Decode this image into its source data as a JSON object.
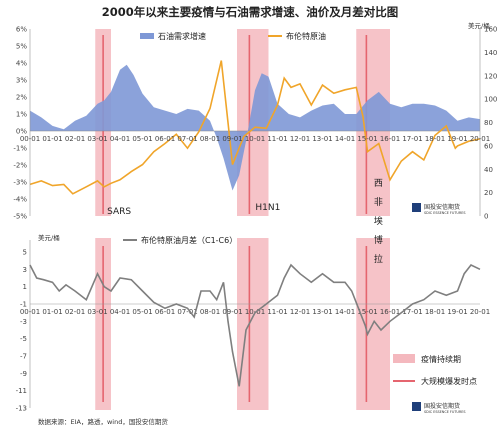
{
  "title": "2000年以来主要疫情与石油需求增速、油价及月差对比图",
  "colors": {
    "demand": "#7e98d6",
    "brent": "#f0a52a",
    "spread": "#7f7f7f",
    "band": "#f4b8be",
    "peak_line": "#e5656f"
  },
  "top_chart": {
    "right_unit": "美元/桶",
    "legend_demand": "石油需求增速",
    "legend_brent": "布伦特原油"
  },
  "bottom_chart": {
    "left_unit": "美元/桶",
    "legend_spread": "布伦特原油月差（C1-C6）",
    "legend_band": "疫情持续期",
    "legend_peak": "大规模爆发时点"
  },
  "events": [
    {
      "label": "SARS",
      "chars": [
        "SARS"
      ]
    },
    {
      "label": "H1N1",
      "chars": [
        "H1N1"
      ]
    },
    {
      "label": "西非埃博拉",
      "chars": [
        "西",
        "非",
        "埃",
        "博",
        "拉"
      ]
    }
  ],
  "logo_text": "国投安信期货",
  "logo_sub": "SDIC ESSENCE FUTURES",
  "source": "数据来源：EIA，路透，wind，国投安信期货",
  "chart_data": [
    {
      "type": "area",
      "title": "2000年以来主要疫情与石油需求增速、油价及月差对比图",
      "x_tick_labels": [
        "00-01",
        "01-01",
        "02-01",
        "03-01",
        "04-01",
        "05-01",
        "06-01",
        "07-01",
        "08-01",
        "09-01",
        "10-01",
        "11-01",
        "12-01",
        "13-01",
        "14-01",
        "15-01",
        "16-01",
        "17-01",
        "18-01",
        "19-01",
        "20-01"
      ],
      "y_left_ticks": [
        "-5%",
        "-4%",
        "-3%",
        "-2%",
        "-1%",
        "0%",
        "1%",
        "2%",
        "3%",
        "4%",
        "5%",
        "6%"
      ],
      "y_right_ticks": [
        "0",
        "20",
        "40",
        "60",
        "80",
        "100",
        "120",
        "140",
        "160"
      ],
      "ylim_left": [
        -5,
        6
      ],
      "ylim_right": [
        0,
        160
      ],
      "series": [
        {
          "name": "石油需求增速",
          "axis": "left",
          "unit": "%",
          "x": [
            2000,
            2000.5,
            2001,
            2001.5,
            2002,
            2002.5,
            2003,
            2003.3,
            2003.6,
            2004,
            2004.3,
            2004.6,
            2005,
            2005.5,
            2006,
            2006.5,
            2007,
            2007.5,
            2008,
            2008.3,
            2008.6,
            2009,
            2009.3,
            2009.6,
            2010,
            2010.3,
            2010.6,
            2011,
            2011.5,
            2012,
            2012.5,
            2013,
            2013.5,
            2014,
            2014.5,
            2015,
            2015.5,
            2016,
            2016.5,
            2017,
            2017.5,
            2018,
            2018.5,
            2019,
            2019.5,
            2020
          ],
          "values": [
            1.2,
            0.8,
            0.3,
            0.1,
            0.6,
            0.9,
            1.6,
            1.8,
            2.3,
            3.6,
            3.9,
            3.3,
            2.2,
            1.4,
            1.2,
            1.0,
            1.3,
            1.2,
            0.6,
            -0.4,
            -1.6,
            -3.5,
            -2.6,
            -0.6,
            2.4,
            3.4,
            3.2,
            1.6,
            1.0,
            0.8,
            1.2,
            1.5,
            1.6,
            1.0,
            1.0,
            1.8,
            2.3,
            1.6,
            1.4,
            1.6,
            1.6,
            1.5,
            1.2,
            0.6,
            0.8,
            0.7
          ]
        },
        {
          "name": "布伦特原油",
          "axis": "right",
          "unit": "美元/桶",
          "x": [
            2000,
            2000.5,
            2001,
            2001.5,
            2001.9,
            2002.5,
            2003,
            2003.3,
            2003.6,
            2004,
            2004.5,
            2005,
            2005.5,
            2006,
            2006.5,
            2007,
            2007.5,
            2008,
            2008.5,
            2008.8,
            2009,
            2009.5,
            2010,
            2010.5,
            2011,
            2011.3,
            2011.6,
            2012,
            2012.5,
            2013,
            2013.5,
            2014,
            2014.5,
            2014.8,
            2015,
            2015.5,
            2016,
            2016.5,
            2017,
            2017.5,
            2018,
            2018.5,
            2018.9,
            2019,
            2019.5,
            2020
          ],
          "values": [
            27,
            30,
            26,
            27,
            19,
            25,
            30,
            25,
            28,
            31,
            38,
            44,
            55,
            62,
            70,
            58,
            72,
            92,
            133,
            80,
            44,
            68,
            76,
            75,
            95,
            118,
            110,
            113,
            95,
            112,
            105,
            108,
            110,
            85,
            55,
            62,
            31,
            47,
            55,
            48,
            69,
            77,
            58,
            60,
            64,
            66
          ]
        }
      ]
    },
    {
      "type": "line",
      "x_tick_labels": [
        "00-01",
        "01-01",
        "02-01",
        "03-01",
        "04-01",
        "05-01",
        "06-01",
        "07-01",
        "08-01",
        "09-01",
        "10-01",
        "11-01",
        "12-01",
        "13-01",
        "14-01",
        "15-01",
        "16-01",
        "17-01",
        "18-01",
        "19-01",
        "20-01"
      ],
      "ylabel": "美元/桶",
      "y_ticks": [
        "5",
        "3",
        "1",
        "-1",
        "-3",
        "-5",
        "-7",
        "-9",
        "-11",
        "-13"
      ],
      "ylim": [
        -13,
        5
      ],
      "series": [
        {
          "name": "布伦特原油月差（C1-C6）",
          "unit": "美元/桶",
          "x": [
            2000,
            2000.3,
            2000.6,
            2001,
            2001.3,
            2001.6,
            2002,
            2002.5,
            2003,
            2003.3,
            2003.6,
            2004,
            2004.5,
            2005,
            2005.5,
            2006,
            2006.5,
            2007,
            2007.3,
            2007.6,
            2008,
            2008.3,
            2008.6,
            2008.8,
            2009,
            2009.3,
            2009.6,
            2010,
            2010.5,
            2011,
            2011.3,
            2011.6,
            2012,
            2012.5,
            2013,
            2013.5,
            2014,
            2014.3,
            2014.6,
            2014.9,
            2015,
            2015.3,
            2015.6,
            2016,
            2016.5,
            2017,
            2017.5,
            2018,
            2018.5,
            2019,
            2019.3,
            2019.6,
            2020
          ],
          "values": [
            3.5,
            2.0,
            1.8,
            1.5,
            0.5,
            1.2,
            0.5,
            -0.5,
            2.5,
            1.0,
            0.5,
            2.0,
            1.8,
            0.5,
            -0.8,
            -1.5,
            -1.0,
            -1.5,
            -2.5,
            0.5,
            0.5,
            -0.5,
            1.5,
            -3.0,
            -6.5,
            -10.5,
            -4.0,
            -2.0,
            -1.0,
            0.0,
            2.0,
            3.5,
            2.5,
            1.5,
            2.5,
            1.5,
            1.5,
            0.5,
            -1.5,
            -3.5,
            -4.5,
            -3.0,
            -4.0,
            -3.0,
            -2.0,
            -1.0,
            -0.5,
            0.5,
            0.0,
            0.5,
            2.5,
            3.5,
            3.0
          ]
        }
      ],
      "event_bands": [
        {
          "label": "SARS",
          "start": 2002.9,
          "end": 2003.6,
          "peak": 2003.25
        },
        {
          "label": "H1N1",
          "start": 2009.2,
          "end": 2010.6,
          "peak": 2009.75
        },
        {
          "label": "西非埃博拉",
          "start": 2014.5,
          "end": 2016.0,
          "peak": 2014.95
        }
      ]
    }
  ]
}
